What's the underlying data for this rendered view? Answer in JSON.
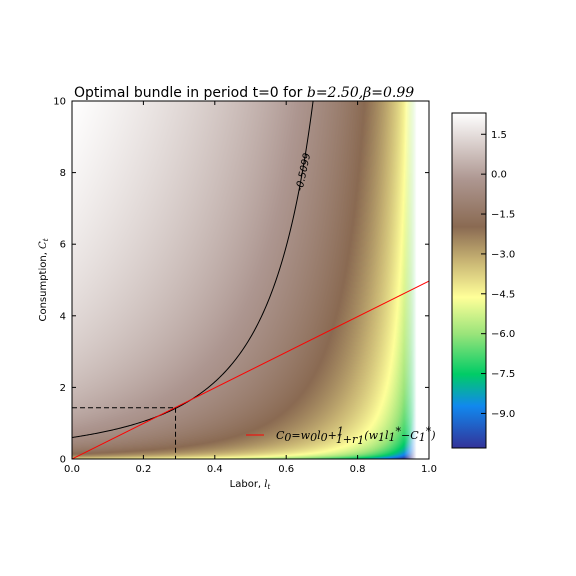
{
  "chart_data": {
    "type": "heatmap",
    "title": {
      "text": "Optimal bundle in period t=0 for ",
      "math": "b=2.50,β=0.99"
    },
    "xlabel": {
      "text": "Labor, ",
      "math": "l",
      "sub": "t"
    },
    "ylabel": {
      "text": "Consumption, ",
      "math": "C",
      "sub": "t"
    },
    "xlim": [
      0.0,
      1.0
    ],
    "ylim": [
      0,
      10
    ],
    "x_ticks": [
      "0.0",
      "0.2",
      "0.4",
      "0.6",
      "0.8",
      "1.0"
    ],
    "y_ticks": [
      "0",
      "2",
      "4",
      "6",
      "8",
      "10"
    ],
    "colorbar": {
      "range": [
        -10.3,
        2.3
      ],
      "ticks": [
        "1.5",
        "0.0",
        "−1.5",
        "−3.0",
        "−4.5",
        "−6.0",
        "−7.5",
        "−9.0"
      ],
      "tick_values": [
        1.5,
        0.0,
        -1.5,
        -3.0,
        -4.5,
        -6.0,
        -7.5,
        -9.0
      ],
      "colormap": "terrain"
    },
    "parameters": {
      "b": 2.5,
      "beta": 0.99
    },
    "contour": {
      "level": -0.5099,
      "label": "-0.5099",
      "color": "#000000"
    },
    "budget_line": {
      "color": "#ff0000",
      "x": [
        0.0,
        1.0
      ],
      "y": [
        0.0,
        4.97
      ],
      "legend_label": "C₀=w₀l₀+(1/(1+r₁))(w₁l₁*−C₁*)"
    },
    "optimum": {
      "x": 0.29,
      "y": 1.43
    },
    "legend_position": "lower-right"
  }
}
